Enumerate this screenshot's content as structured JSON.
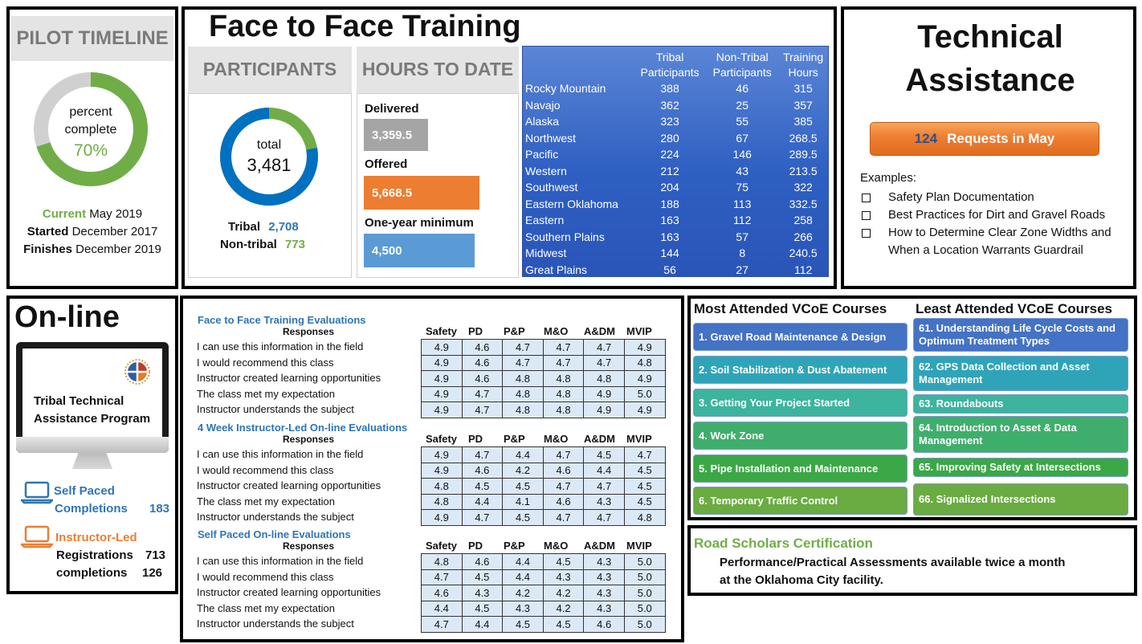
{
  "pilot": {
    "header": "PILOT TIMELINE",
    "donut_label_1": "percent",
    "donut_label_2": "complete",
    "percent_text": "70%",
    "percent_value": 0.7,
    "current_label": "Current",
    "current_value": "May 2019",
    "started_label": "Started",
    "started_value": "December 2017",
    "finishes_label": "Finishes",
    "finishes_value": "December 2019"
  },
  "f2f": {
    "title": "Face to Face Training",
    "participants_header": "PARTICIPANTS",
    "total_label": "total",
    "total_value": "3,481",
    "tribal_label": "Tribal",
    "tribal_value": "2,708",
    "nontribal_label": "Non-tribal",
    "nontribal_value": "773",
    "tribal_fraction": 0.778,
    "hours_header": "HOURS TO DATE",
    "delivered_label": "Delivered",
    "delivered_value": "3,359.5",
    "offered_label": "Offered",
    "offered_value": "5,668.5",
    "minimum_label": "One-year minimum",
    "minimum_value": "4,500",
    "colors": {
      "gray": "#a5a5a5",
      "orange": "#ed7d31",
      "blue": "#5b9bd5",
      "green": "#70ad47",
      "donut_blue": "#0070c0"
    }
  },
  "region_table": {
    "headers": [
      "Tribal Participants",
      "Non-Tribal Participants",
      "Training Hours"
    ],
    "header_lines": [
      [
        "Tribal",
        "Participants"
      ],
      [
        "Non-Tribal",
        "Participants"
      ],
      [
        "Training",
        "Hours"
      ]
    ],
    "rows": [
      [
        "Rocky Mountain",
        "388",
        "46",
        "315"
      ],
      [
        "Navajo",
        "362",
        "25",
        "357"
      ],
      [
        "Alaska",
        "323",
        "55",
        "385"
      ],
      [
        "Northwest",
        "280",
        "67",
        "268.5"
      ],
      [
        "Pacific",
        "224",
        "146",
        "289.5"
      ],
      [
        "Western",
        "212",
        "43",
        "213.5"
      ],
      [
        "Southwest",
        "204",
        "75",
        "322"
      ],
      [
        "Eastern Oklahoma",
        "188",
        "113",
        "332.5"
      ],
      [
        "Eastern",
        "163",
        "112",
        "258"
      ],
      [
        "Southern Plains",
        "163",
        "57",
        "266"
      ],
      [
        "Midwest",
        "144",
        "8",
        "240.5"
      ],
      [
        "Great Plains",
        "56",
        "27",
        "112"
      ]
    ]
  },
  "ta": {
    "title_1": "Technical",
    "title_2": "Assistance",
    "requests_number": "124",
    "requests_text": "Requests in May",
    "examples_label": "Examples:",
    "examples": [
      "Safety Plan Documentation",
      "Best Practices for Dirt and Gravel Roads",
      "How to Determine Clear Zone Widths and When a Location Warrants Guardrail"
    ]
  },
  "online": {
    "title": "On-line",
    "screen_line_1": "Tribal Technical",
    "screen_line_2": "Assistance Program",
    "self_paced_label": "Self Paced",
    "completions_label": "Completions",
    "completions_value": "183",
    "instructor_label": "Instructor-Led",
    "registrations_label": "Registrations",
    "registrations_value": "713",
    "completions2_label": "completions",
    "completions2_value": "126"
  },
  "evaluations": {
    "responses_label": "Responses",
    "columns": [
      "Safety",
      "PD",
      "P&P",
      "M&O",
      "A&DM",
      "MVIP"
    ],
    "questions": [
      "I can use this information in the field",
      "I would recommend this class",
      "Instructor created learning opportunities",
      "The class met my expectation",
      "Instructor understands the subject"
    ],
    "sections": [
      {
        "title": "Face to Face Training Evaluations",
        "values": [
          [
            "4.9",
            "4.6",
            "4.7",
            "4.7",
            "4.7",
            "4.9"
          ],
          [
            "4.9",
            "4.6",
            "4.7",
            "4.7",
            "4.7",
            "4.8"
          ],
          [
            "4.9",
            "4.6",
            "4.8",
            "4.8",
            "4.8",
            "4.9"
          ],
          [
            "4.9",
            "4.7",
            "4.8",
            "4.8",
            "4.9",
            "5.0"
          ],
          [
            "4.9",
            "4.7",
            "4.8",
            "4.8",
            "4.9",
            "4.9"
          ]
        ]
      },
      {
        "title": "4 Week Instructor-Led On-line Evaluations",
        "values": [
          [
            "4.9",
            "4.7",
            "4.4",
            "4.7",
            "4.5",
            "4.7"
          ],
          [
            "4.9",
            "4.6",
            "4.2",
            "4.6",
            "4.4",
            "4.5"
          ],
          [
            "4.8",
            "4.5",
            "4.5",
            "4.7",
            "4.7",
            "4.5"
          ],
          [
            "4.8",
            "4.4",
            "4.1",
            "4.6",
            "4.3",
            "4.5"
          ],
          [
            "4.9",
            "4.7",
            "4.5",
            "4.7",
            "4.7",
            "4.8"
          ]
        ]
      },
      {
        "title": "Self Paced On-line Evaluations",
        "values": [
          [
            "4.8",
            "4.6",
            "4.4",
            "4.5",
            "4.3",
            "5.0"
          ],
          [
            "4.7",
            "4.5",
            "4.4",
            "4.3",
            "4.3",
            "5.0"
          ],
          [
            "4.6",
            "4.3",
            "4.2",
            "4.2",
            "4.3",
            "5.0"
          ],
          [
            "4.4",
            "4.5",
            "4.3",
            "4.2",
            "4.3",
            "5.0"
          ],
          [
            "4.7",
            "4.4",
            "4.5",
            "4.5",
            "4.6",
            "5.0"
          ]
        ]
      }
    ]
  },
  "courses": {
    "most_title": "Most Attended VCoE Courses",
    "least_title": "Least Attended VCoE Courses",
    "most": [
      "1.  Gravel Road Maintenance & Design",
      "2.  Soil Stabilization & Dust Abatement",
      "3.  Getting Your Project Started",
      "4.  Work Zone",
      "5.  Pipe Installation and Maintenance",
      "6.  Temporary Traffic Control"
    ],
    "least": [
      "61.  Understanding Life Cycle Costs and Optimum Treatment Types",
      "62.  GPS Data Collection and Asset Management",
      "63. Roundabouts",
      "64.  Introduction to Asset & Data Management",
      "65.  Improving Safety at Intersections",
      "66.  Signalized Intersections"
    ],
    "colors": [
      "#4472c4",
      "#2fa4b8",
      "#3cb49e",
      "#3fae6c",
      "#3aa846",
      "#6aab42"
    ]
  },
  "road_scholars": {
    "title": "Road Scholars Certification",
    "line_1": "Performance/Practical Assessments available twice a month",
    "line_2": "at the Oklahoma City facility."
  }
}
